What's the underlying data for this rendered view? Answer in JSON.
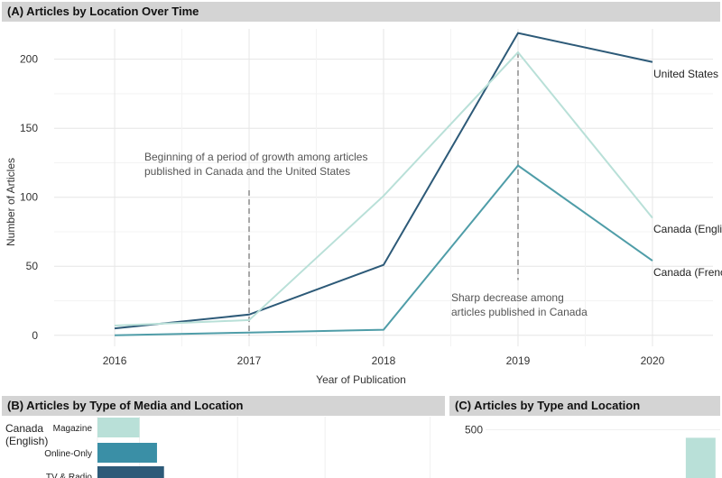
{
  "panels": {
    "a_title": "(A) Articles by Location Over Time",
    "b_title": "(B) Articles by Type of Media and Location",
    "c_title": "(C) Articles by Type and Location"
  },
  "chart_data": [
    {
      "type": "line",
      "title": "(A) Articles by Location Over Time",
      "xlabel": "Year of Publication",
      "ylabel": "Number of Articles",
      "x": [
        2016,
        2017,
        2018,
        2019,
        2020
      ],
      "xlim": [
        2015.55,
        2020.45
      ],
      "ylim": [
        -8,
        222
      ],
      "yticks": [
        0,
        50,
        100,
        150,
        200
      ],
      "grid": true,
      "series": [
        {
          "name": "United States",
          "values": [
            5,
            15,
            51,
            219,
            198
          ],
          "color": "#2d5a78"
        },
        {
          "name": "Canada (English)",
          "values": [
            7,
            11,
            101,
            205,
            85
          ],
          "color": "#b9e0d8"
        },
        {
          "name": "Canada (French)",
          "values": [
            0,
            2,
            4,
            123,
            54
          ],
          "color": "#4f9da8"
        }
      ],
      "annotations": [
        {
          "text_lines": [
            "Beginning of a period of growth among articles",
            "published in Canada and the United States"
          ],
          "x": 2017,
          "y_from": 105,
          "y_to": 0
        },
        {
          "text_lines": [
            "Sharp decrease among",
            "articles published in Canada"
          ],
          "x": 2019,
          "y_from": 205,
          "y_to": 40
        }
      ]
    },
    {
      "type": "bar",
      "title": "(B) Articles by Type of Media and Location",
      "group_label_lines": [
        "Canada",
        "(English)"
      ],
      "categories": [
        "Magazine",
        "Online-Only",
        "TV & Radio"
      ],
      "values": [
        12,
        17,
        19
      ],
      "colors": [
        "#b9e0d8",
        "#3a8fa6",
        "#2d5a78"
      ],
      "xlim": [
        0,
        100
      ]
    },
    {
      "type": "bar",
      "title": "(C) Articles by Type and Location",
      "yticks": [
        500
      ],
      "ylim": [
        0,
        600
      ],
      "values": [
        0,
        10,
        0,
        0,
        0,
        420
      ],
      "colors": [
        "#b9e0d8",
        "#b9e0d8",
        "#b9e0d8",
        "#b9e0d8",
        "#b9e0d8",
        "#b9e0d8"
      ]
    }
  ]
}
